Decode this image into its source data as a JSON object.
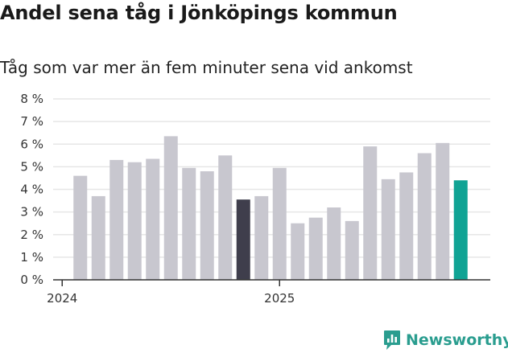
{
  "header": {
    "title": "Andel sena tåg i Jönköpings kommun",
    "subtitle": "Tåg som var mer än fem minuter sena vid ankomst"
  },
  "brand": {
    "name": "Newsworthy",
    "logo_icon": "newsworthy-chart-bubble-icon",
    "color": "#2a9d8f"
  },
  "colors": {
    "bar_default": "#c8c7cf",
    "bar_highlight_dark": "#3f3e4c",
    "bar_highlight_current": "#10a394",
    "gridline": "#e6e6e6",
    "axis": "#333333"
  },
  "chart_data": {
    "type": "bar",
    "title": "Andel sena tåg i Jönköpings kommun",
    "subtitle": "Tåg som var mer än fem minuter sena vid ankomst",
    "xlabel": "",
    "ylabel": "",
    "ylim": [
      0,
      8
    ],
    "yticks": [
      0,
      1,
      2,
      3,
      4,
      5,
      6,
      7,
      8
    ],
    "ytick_labels": [
      "0 %",
      "1 %",
      "2 %",
      "3 %",
      "4 %",
      "5 %",
      "6 %",
      "7 %",
      "8 %"
    ],
    "xtick_labels": [
      {
        "label": "2024",
        "index": 0
      },
      {
        "label": "2025",
        "index": 12
      }
    ],
    "grid": true,
    "values": [
      4.6,
      3.7,
      5.3,
      5.2,
      5.35,
      6.35,
      4.95,
      4.8,
      5.5,
      3.55,
      3.7,
      4.95,
      2.5,
      2.75,
      3.2,
      2.6,
      5.9,
      4.45,
      4.75,
      5.6,
      6.05,
      4.4
    ],
    "first_bar_index": 1,
    "slot_count": 23,
    "highlight": [
      {
        "index": 9,
        "color": "#3f3e4c"
      },
      {
        "index": 21,
        "color": "#10a394"
      }
    ]
  }
}
